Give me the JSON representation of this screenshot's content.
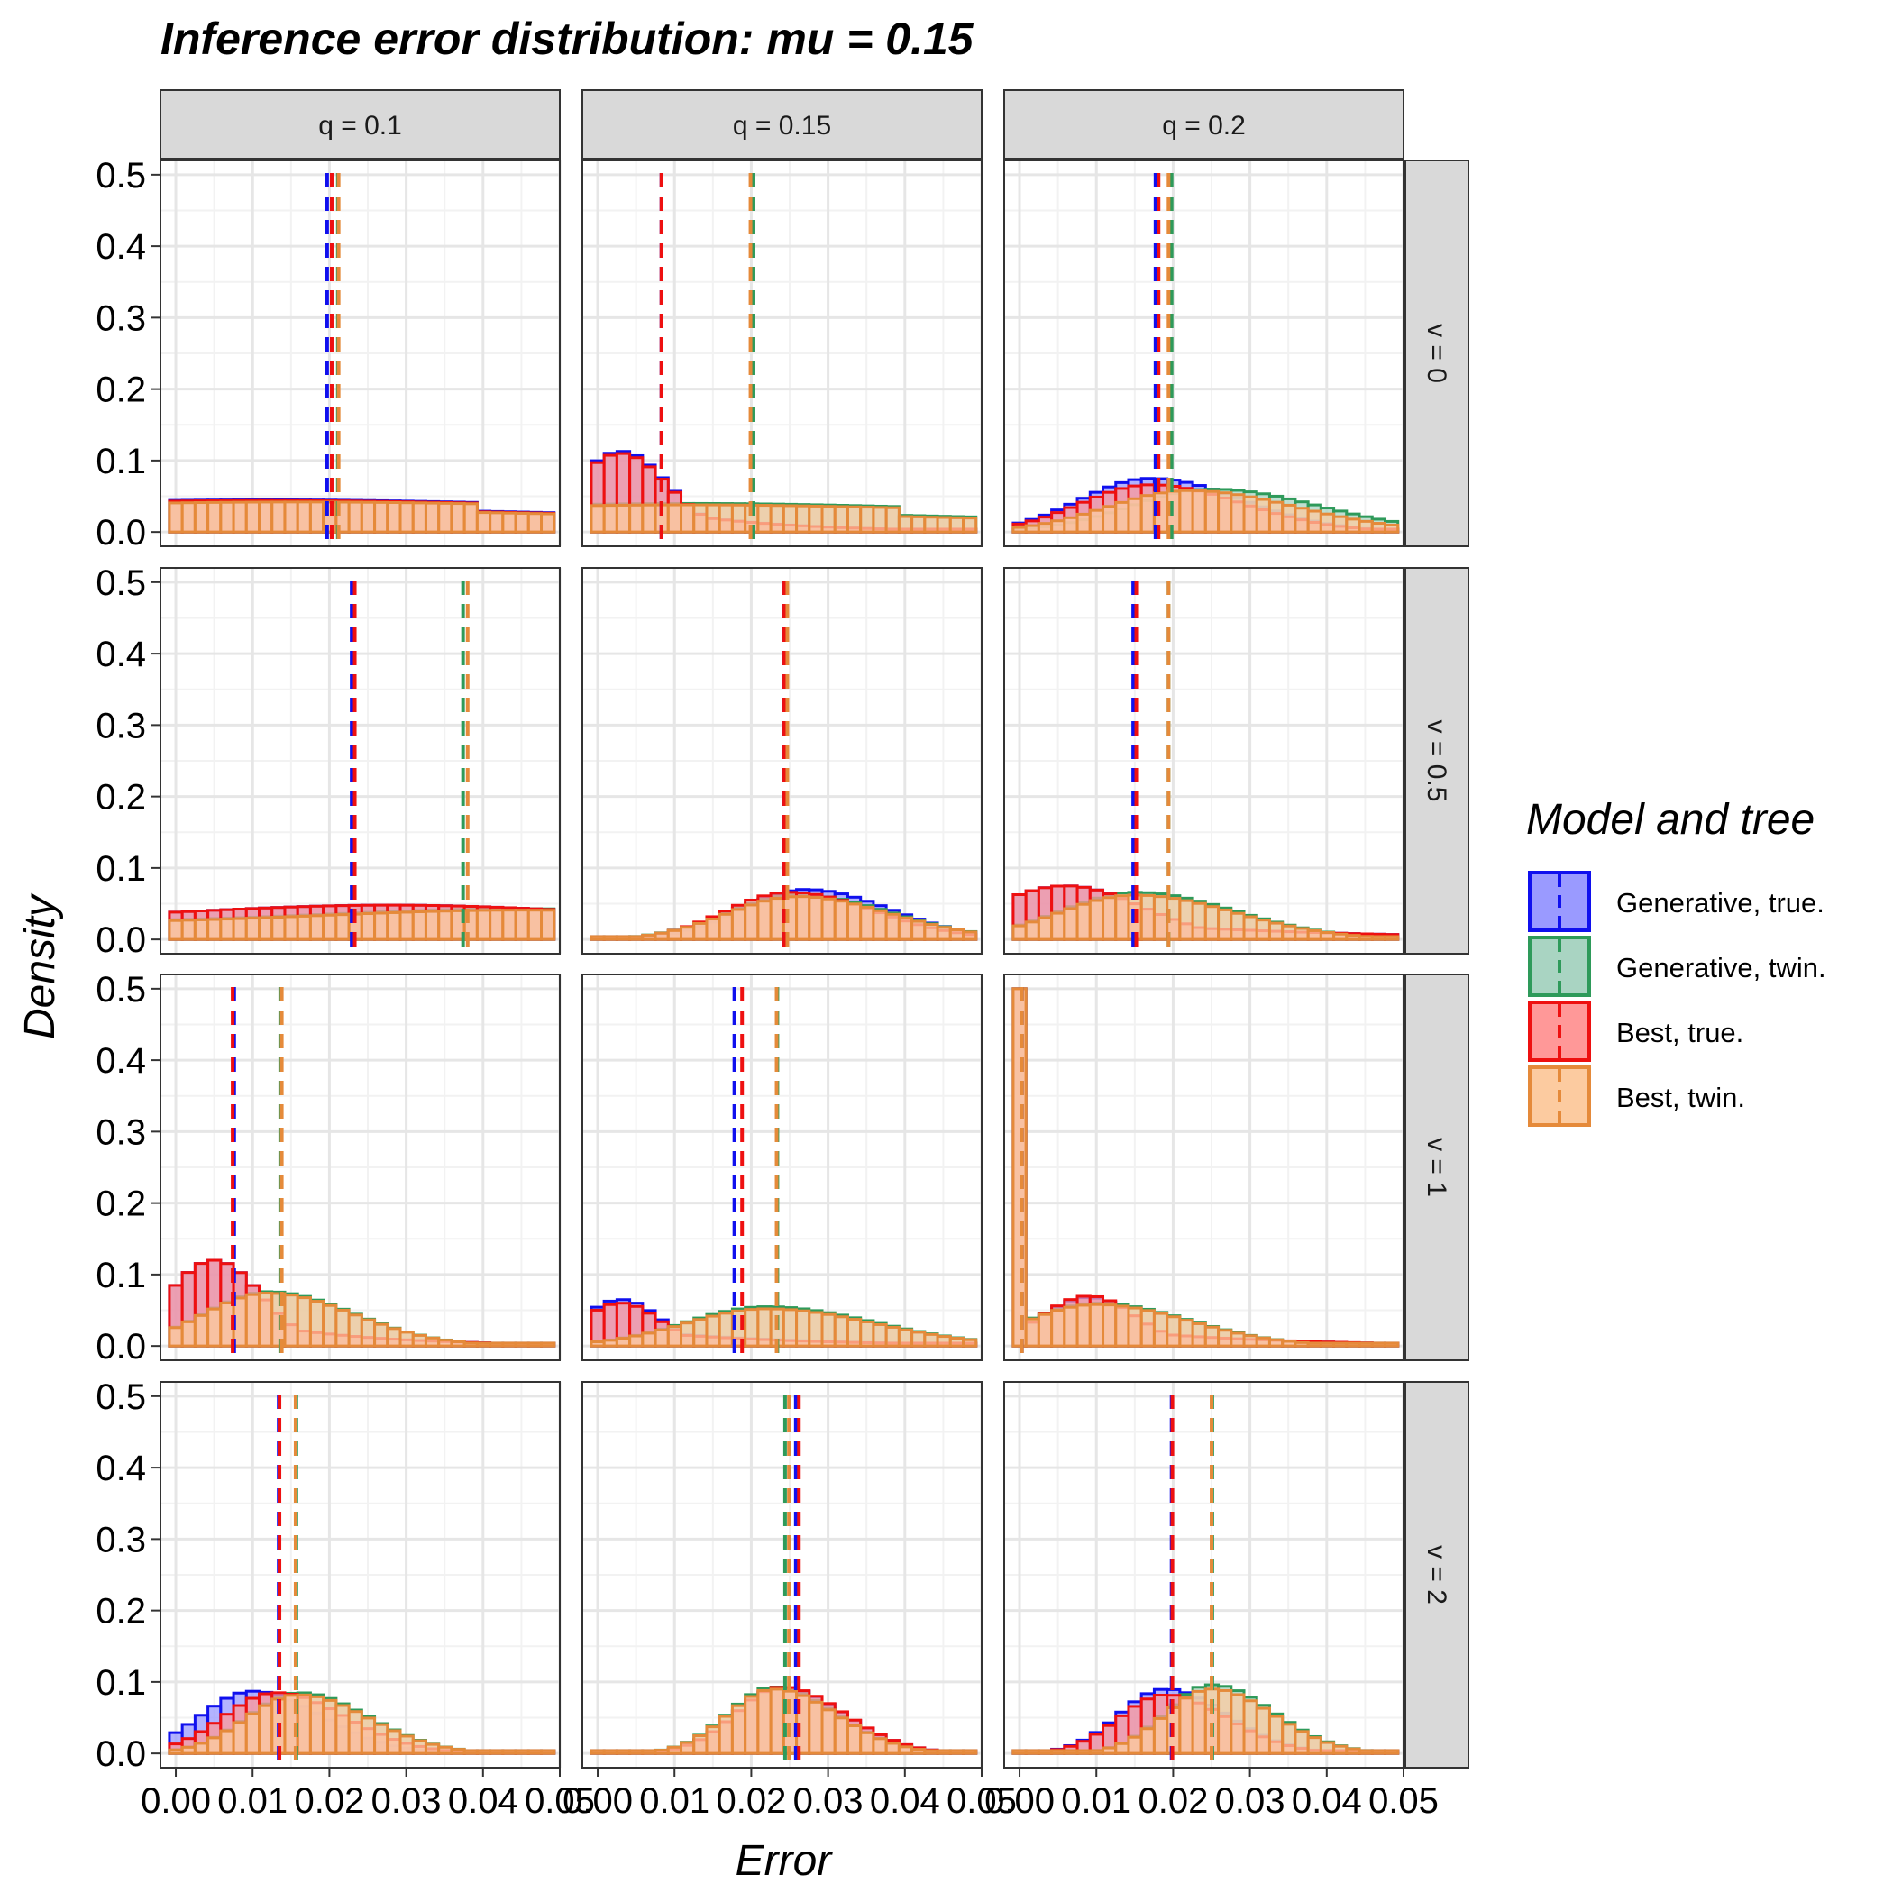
{
  "chart_data": {
    "type": "bar",
    "chart_subtype": "faceted histogram",
    "title": "Inference error distribution: mu = 0.15",
    "xlabel": "Error",
    "ylabel": "Density",
    "xlim": [
      -0.002,
      0.05
    ],
    "ylim": [
      -0.02,
      0.52
    ],
    "x_ticks": [
      0.0,
      0.01,
      0.02,
      0.03,
      0.04,
      0.05
    ],
    "x_tick_labels": [
      "0.00",
      "0.01",
      "0.02",
      "0.03",
      "0.04",
      "0.05"
    ],
    "y_ticks": [
      0.0,
      0.1,
      0.2,
      0.3,
      0.4,
      0.5
    ],
    "y_tick_labels": [
      "0.0",
      "0.1",
      "0.2",
      "0.3",
      "0.4",
      "0.5"
    ],
    "grid": true,
    "bin_width": 0.00167,
    "column_facets": [
      "q = 0.1",
      "q = 0.15",
      "q = 0.2"
    ],
    "row_facets": [
      "v = 0",
      "v = 0.5",
      "v = 1",
      "v = 2"
    ],
    "legend": {
      "title": "Model and tree",
      "position": "right",
      "entries": [
        {
          "label": "Generative, true.",
          "stroke": "#1010ee",
          "fill": "#9a9aff"
        },
        {
          "label": "Generative, twin.",
          "stroke": "#2e9a5a",
          "fill": "#a9d4c2"
        },
        {
          "label": "Best, true.",
          "stroke": "#ee1010",
          "fill": "#ff9898"
        },
        {
          "label": "Best, twin.",
          "stroke": "#e58a3a",
          "fill": "#fccba0"
        }
      ]
    },
    "series_order": [
      "gen_true",
      "gen_twin",
      "best_true",
      "best_twin"
    ],
    "panels": [
      {
        "row": 0,
        "col": 0,
        "means": {
          "gen_true": 0.0197,
          "gen_twin": 0.0211,
          "best_true": 0.0203,
          "best_twin": 0.0212
        },
        "shape": {
          "gen_true": {
            "kind": "flat",
            "level": 0.045,
            "mode": 0.012,
            "spread": 0.03
          },
          "gen_twin": {
            "kind": "flat",
            "level": 0.043,
            "mode": 0.015,
            "spread": 0.03
          },
          "best_true": {
            "kind": "flat",
            "level": 0.044,
            "mode": 0.012,
            "spread": 0.03
          },
          "best_twin": {
            "kind": "flat",
            "level": 0.042,
            "mode": 0.016,
            "spread": 0.03
          }
        }
      },
      {
        "row": 0,
        "col": 1,
        "means": {
          "gen_true": 0.0083,
          "gen_twin": 0.0203,
          "best_true": 0.0083,
          "best_twin": 0.0199
        },
        "shape": {
          "gen_true": {
            "kind": "peak",
            "level": 0.113,
            "mode": 0.003,
            "spread": 0.006,
            "tail": 0.015
          },
          "gen_twin": {
            "kind": "flat",
            "level": 0.04,
            "mode": 0.012,
            "spread": 0.025
          },
          "best_true": {
            "kind": "peak",
            "level": 0.11,
            "mode": 0.003,
            "spread": 0.006,
            "tail": 0.015
          },
          "best_twin": {
            "kind": "flat",
            "level": 0.038,
            "mode": 0.012,
            "spread": 0.025
          }
        }
      },
      {
        "row": 0,
        "col": 2,
        "means": {
          "gen_true": 0.0177,
          "gen_twin": 0.0198,
          "best_true": 0.0181,
          "best_twin": 0.0194
        },
        "shape": {
          "gen_true": {
            "kind": "bell",
            "level": 0.075,
            "mode": 0.017,
            "spread": 0.012
          },
          "gen_twin": {
            "kind": "bell",
            "level": 0.06,
            "mode": 0.025,
            "spread": 0.014
          },
          "best_true": {
            "kind": "bell",
            "level": 0.066,
            "mode": 0.017,
            "spread": 0.012
          },
          "best_twin": {
            "kind": "bell",
            "level": 0.058,
            "mode": 0.022,
            "spread": 0.014
          }
        }
      },
      {
        "row": 1,
        "col": 0,
        "means": {
          "gen_true": 0.0229,
          "gen_twin": 0.0374,
          "best_true": 0.0233,
          "best_twin": 0.038
        },
        "shape": {
          "gen_true": {
            "kind": "ramp",
            "level": 0.048,
            "mode": 0.028,
            "spread": 0.03
          },
          "gen_twin": {
            "kind": "ramp",
            "level": 0.043,
            "mode": 0.045,
            "spread": 0.03
          },
          "best_true": {
            "kind": "ramp",
            "level": 0.048,
            "mode": 0.028,
            "spread": 0.03
          },
          "best_twin": {
            "kind": "ramp",
            "level": 0.041,
            "mode": 0.045,
            "spread": 0.03
          }
        }
      },
      {
        "row": 1,
        "col": 1,
        "means": {
          "gen_true": 0.0242,
          "gen_twin": 0.0246,
          "best_true": 0.0243,
          "best_twin": 0.0247
        },
        "shape": {
          "gen_true": {
            "kind": "bell",
            "level": 0.07,
            "mode": 0.027,
            "spread": 0.011
          },
          "gen_twin": {
            "kind": "bell",
            "level": 0.063,
            "mode": 0.026,
            "spread": 0.012
          },
          "best_true": {
            "kind": "bell",
            "level": 0.066,
            "mode": 0.025,
            "spread": 0.011
          },
          "best_twin": {
            "kind": "bell",
            "level": 0.06,
            "mode": 0.026,
            "spread": 0.012
          }
        }
      },
      {
        "row": 1,
        "col": 2,
        "means": {
          "gen_true": 0.0148,
          "gen_twin": 0.0194,
          "best_true": 0.0152,
          "best_twin": 0.0194
        },
        "shape": {
          "gen_true": {
            "kind": "peak",
            "level": 0.075,
            "mode": 0.006,
            "spread": 0.01,
            "tail": 0.03
          },
          "gen_twin": {
            "kind": "bell",
            "level": 0.066,
            "mode": 0.015,
            "spread": 0.013
          },
          "best_true": {
            "kind": "peak",
            "level": 0.075,
            "mode": 0.006,
            "spread": 0.01,
            "tail": 0.03
          },
          "best_twin": {
            "kind": "bell",
            "level": 0.062,
            "mode": 0.015,
            "spread": 0.013
          }
        }
      },
      {
        "row": 2,
        "col": 0,
        "means": {
          "gen_true": 0.0076,
          "gen_twin": 0.0136,
          "best_true": 0.0074,
          "best_twin": 0.0138
        },
        "shape": {
          "gen_true": {
            "kind": "peak",
            "level": 0.12,
            "mode": 0.005,
            "spread": 0.006,
            "tail": 0.015
          },
          "gen_twin": {
            "kind": "bell",
            "level": 0.076,
            "mode": 0.012,
            "spread": 0.011
          },
          "best_true": {
            "kind": "peak",
            "level": 0.12,
            "mode": 0.005,
            "spread": 0.006,
            "tail": 0.015
          },
          "best_twin": {
            "kind": "bell",
            "level": 0.074,
            "mode": 0.012,
            "spread": 0.011
          }
        }
      },
      {
        "row": 2,
        "col": 1,
        "means": {
          "gen_true": 0.0178,
          "gen_twin": 0.0234,
          "best_true": 0.0188,
          "best_twin": 0.0233
        },
        "shape": {
          "gen_true": {
            "kind": "peak",
            "level": 0.065,
            "mode": 0.003,
            "spread": 0.005,
            "tail": 0.02
          },
          "gen_twin": {
            "kind": "bell",
            "level": 0.055,
            "mode": 0.022,
            "spread": 0.014
          },
          "best_true": {
            "kind": "peak",
            "level": 0.06,
            "mode": 0.003,
            "spread": 0.005,
            "tail": 0.02
          },
          "best_twin": {
            "kind": "bell",
            "level": 0.052,
            "mode": 0.022,
            "spread": 0.014
          }
        }
      },
      {
        "row": 2,
        "col": 2,
        "means": {
          "gen_true": 0.0003,
          "gen_twin": 0.0003,
          "best_true": 0.0003,
          "best_twin": 0.0003
        },
        "spike": {
          "x": 0.0,
          "value": 0.5
        },
        "shape": {
          "gen_true": {
            "kind": "peak",
            "level": 0.068,
            "mode": 0.009,
            "spread": 0.006,
            "tail": 0.02
          },
          "gen_twin": {
            "kind": "bell",
            "level": 0.06,
            "mode": 0.01,
            "spread": 0.012
          },
          "best_true": {
            "kind": "peak",
            "level": 0.07,
            "mode": 0.009,
            "spread": 0.006,
            "tail": 0.02
          },
          "best_twin": {
            "kind": "bell",
            "level": 0.058,
            "mode": 0.01,
            "spread": 0.012
          }
        }
      },
      {
        "row": 3,
        "col": 0,
        "means": {
          "gen_true": 0.0134,
          "gen_twin": 0.0157,
          "best_true": 0.0135,
          "best_twin": 0.0156
        },
        "shape": {
          "gen_true": {
            "kind": "bell",
            "level": 0.087,
            "mode": 0.01,
            "spread": 0.009
          },
          "gen_twin": {
            "kind": "bell",
            "level": 0.085,
            "mode": 0.016,
            "spread": 0.009
          },
          "best_true": {
            "kind": "bell",
            "level": 0.085,
            "mode": 0.013,
            "spread": 0.009
          },
          "best_twin": {
            "kind": "bell",
            "level": 0.082,
            "mode": 0.016,
            "spread": 0.009
          }
        }
      },
      {
        "row": 3,
        "col": 1,
        "means": {
          "gen_true": 0.0258,
          "gen_twin": 0.0244,
          "best_true": 0.0262,
          "best_twin": 0.0249
        },
        "shape": {
          "gen_true": {
            "kind": "bell",
            "level": 0.092,
            "mode": 0.024,
            "spread": 0.008
          },
          "gen_twin": {
            "kind": "bell",
            "level": 0.093,
            "mode": 0.023,
            "spread": 0.008
          },
          "best_true": {
            "kind": "bell",
            "level": 0.093,
            "mode": 0.024,
            "spread": 0.008
          },
          "best_twin": {
            "kind": "bell",
            "level": 0.09,
            "mode": 0.023,
            "spread": 0.008
          }
        }
      },
      {
        "row": 3,
        "col": 2,
        "means": {
          "gen_true": 0.0198,
          "gen_twin": 0.0251,
          "best_true": 0.0199,
          "best_twin": 0.025
        },
        "shape": {
          "gen_true": {
            "kind": "bell",
            "level": 0.09,
            "mode": 0.019,
            "spread": 0.008
          },
          "gen_twin": {
            "kind": "bell",
            "level": 0.096,
            "mode": 0.025,
            "spread": 0.008
          },
          "best_true": {
            "kind": "bell",
            "level": 0.082,
            "mode": 0.019,
            "spread": 0.008
          },
          "best_twin": {
            "kind": "bell",
            "level": 0.09,
            "mode": 0.025,
            "spread": 0.008
          }
        }
      }
    ]
  }
}
